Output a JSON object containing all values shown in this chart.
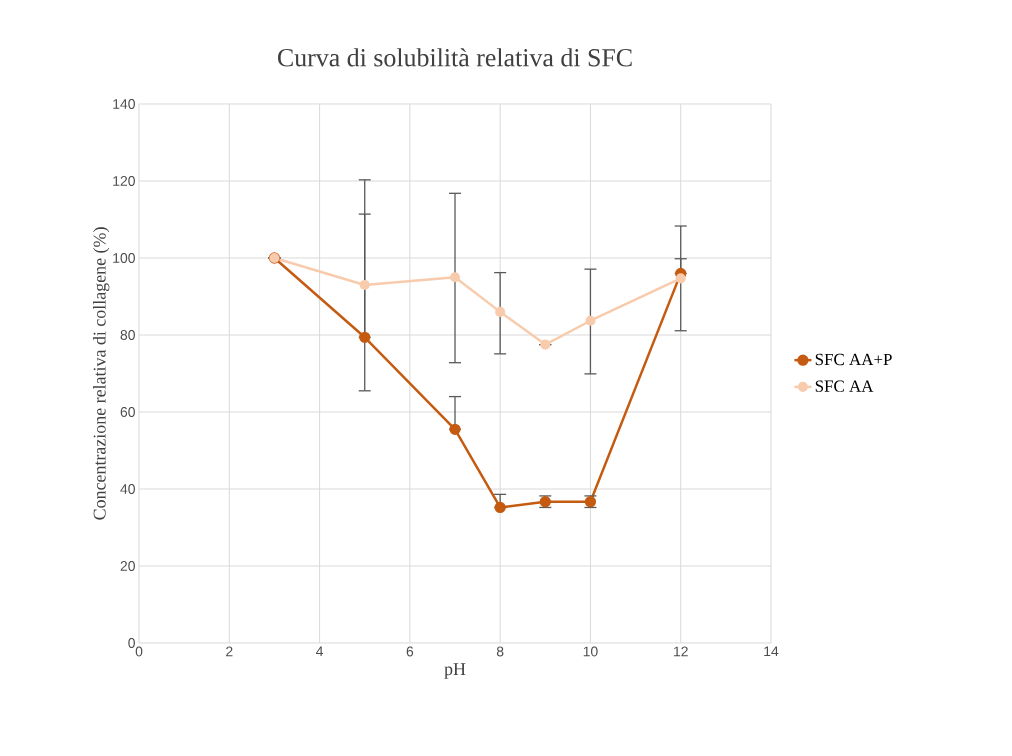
{
  "chart_data": {
    "type": "line",
    "title": "Curva di solubilità relativa di SFC",
    "xlabel": "pH",
    "ylabel": "Concentrazione relativa di collagene (%)",
    "x": [
      3,
      5,
      7,
      8,
      9,
      10,
      12
    ],
    "series": [
      {
        "name": "SFC AA+P",
        "color": "#c55a11",
        "values": [
          100,
          79.4,
          55.5,
          35.2,
          36.7,
          36.7,
          96
        ],
        "errors": [
          null,
          [
            79.4,
            111.4
          ],
          [
            55.5,
            64.0
          ],
          [
            35.2,
            38.6
          ],
          1.5,
          1.5,
          [
            96,
            99.8
          ]
        ]
      },
      {
        "name": "SFC AA",
        "color": "#f8cbad",
        "values": [
          100,
          93,
          95,
          86,
          77.5,
          83.7,
          94.7
        ],
        "errors": [
          null,
          [
            65.5,
            120.3
          ],
          [
            72.8,
            116.8
          ],
          [
            75.1,
            96.2
          ],
          null,
          [
            69.9,
            97.1
          ],
          [
            81.1,
            108.3
          ]
        ]
      }
    ],
    "xlim": [
      0,
      14
    ],
    "xticks": [
      0,
      2,
      4,
      6,
      8,
      10,
      12,
      14
    ],
    "ylim": [
      0,
      140
    ],
    "yticks": [
      0,
      20,
      40,
      60,
      80,
      100,
      120,
      140
    ],
    "grid": true,
    "legend": "right",
    "marker": "circle",
    "line_style": "solid"
  }
}
